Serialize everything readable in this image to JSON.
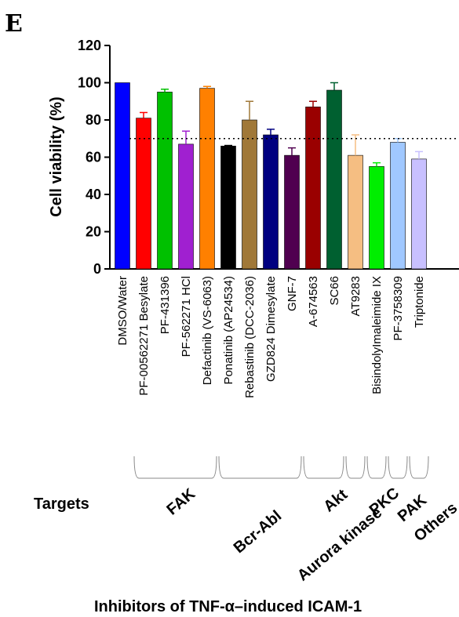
{
  "panel_label": "E",
  "chart_data": {
    "type": "bar",
    "ylabel": "Cell viability (%)",
    "ylim": [
      0,
      120
    ],
    "yticks": [
      0,
      20,
      40,
      60,
      80,
      100,
      120
    ],
    "threshold": 70,
    "threshold_style": "dotted",
    "categories": [
      "DMSO/Water",
      "PF-00562271 Besylate",
      "PF-431396",
      "PF-562271 HCl",
      "Defactinib (VS-6063)",
      "Ponatinib (AP24534)",
      "Rebastinib (DCC-2036)",
      "GZD824 Dimesylate",
      "GNF-7",
      "A-674563",
      "SC66",
      "AT9283",
      "BisindolyImaleimide IX",
      "PF-3758309",
      "Triptonide"
    ],
    "values": [
      100,
      81,
      95,
      67,
      97,
      66,
      80,
      72,
      61,
      87,
      96,
      61,
      55,
      68,
      59
    ],
    "errors": [
      0,
      3,
      1.5,
      7,
      1,
      0.3,
      10,
      3,
      4,
      3,
      4,
      11,
      2,
      2,
      4
    ],
    "colors": [
      "#0000ff",
      "#ff0000",
      "#00c000",
      "#a020d0",
      "#ff8000",
      "#000000",
      "#a07838",
      "#000080",
      "#500050",
      "#9a0000",
      "#006030",
      "#f5be82",
      "#00ee00",
      "#a0c8ff",
      "#c8c0ff"
    ],
    "error_colors": [
      "#0000ff",
      "#ff0000",
      "#00c000",
      "#a020d0",
      "#ff8000",
      "#000000",
      "#a07838",
      "#000080",
      "#500050",
      "#9a0000",
      "#006030",
      "#f5be82",
      "#00ee00",
      "#a0c8ff",
      "#c8c0ff"
    ]
  },
  "targets_label": "Targets",
  "groups": [
    {
      "label": "FAK",
      "start": 1,
      "end": 4
    },
    {
      "label": "Bcr-Abl",
      "start": 5,
      "end": 8
    },
    {
      "label": "Akt",
      "start": 9,
      "end": 10
    },
    {
      "label": "Aurora kinase",
      "start": 11,
      "end": 11
    },
    {
      "label": "PKC",
      "start": 12,
      "end": 12
    },
    {
      "label": "PAK",
      "start": 13,
      "end": 13
    },
    {
      "label": "Others",
      "start": 14,
      "end": 14
    }
  ],
  "footer": "Inhibitors of TNF-α–induced ICAM-1"
}
